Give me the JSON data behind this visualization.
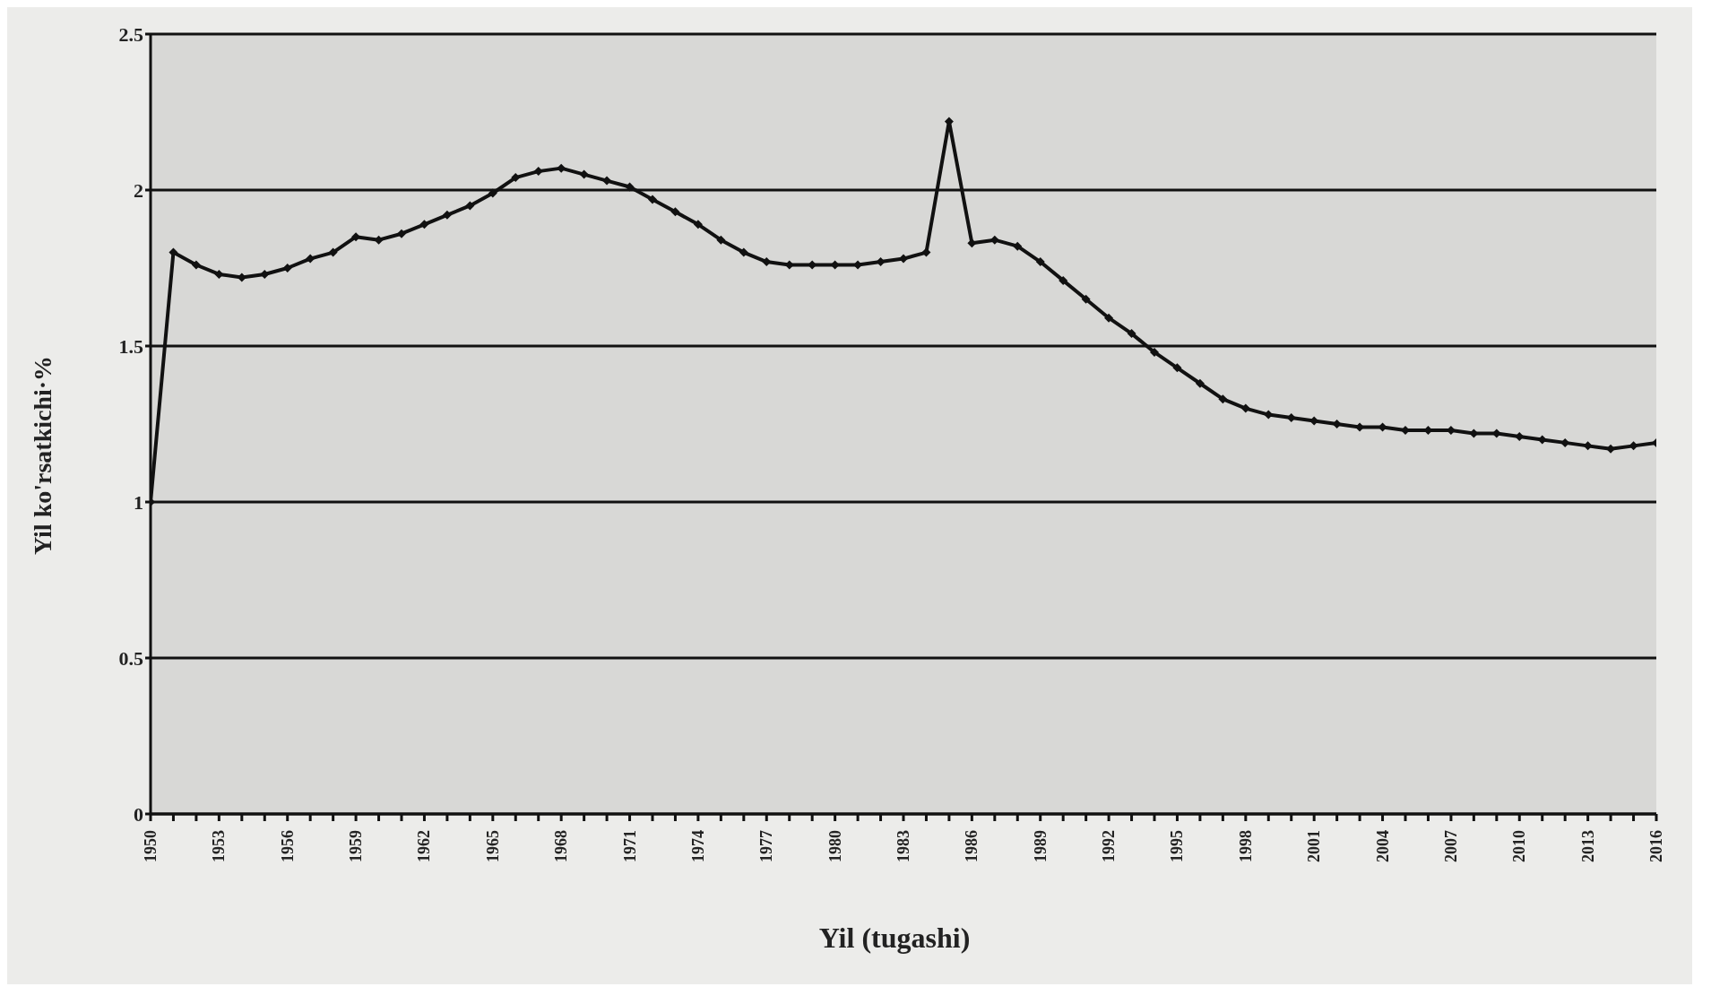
{
  "chart_data": {
    "type": "line",
    "xlabel": "Yil (tugashi)",
    "ylabel": "Yil ko'rsatkichi·%",
    "x": [
      1950,
      1951,
      1952,
      1953,
      1954,
      1955,
      1956,
      1957,
      1958,
      1959,
      1960,
      1961,
      1962,
      1963,
      1964,
      1965,
      1966,
      1967,
      1968,
      1969,
      1970,
      1971,
      1972,
      1973,
      1974,
      1975,
      1976,
      1977,
      1978,
      1979,
      1980,
      1981,
      1982,
      1983,
      1984,
      1985,
      1986,
      1987,
      1988,
      1989,
      1990,
      1991,
      1992,
      1993,
      1994,
      1995,
      1996,
      1997,
      1998,
      1999,
      2000,
      2001,
      2002,
      2003,
      2004,
      2005,
      2006,
      2007,
      2008,
      2009,
      2010,
      2011,
      2012,
      2013,
      2014,
      2015,
      2016
    ],
    "series": [
      {
        "color": "#111111",
        "values": [
          1.0,
          1.8,
          1.76,
          1.73,
          1.72,
          1.73,
          1.75,
          1.78,
          1.8,
          1.85,
          1.84,
          1.86,
          1.89,
          1.92,
          1.95,
          1.99,
          2.04,
          2.06,
          2.07,
          2.05,
          2.03,
          2.01,
          1.97,
          1.93,
          1.89,
          1.84,
          1.8,
          1.77,
          1.76,
          1.76,
          1.76,
          1.76,
          1.77,
          1.78,
          1.8,
          2.22,
          1.83,
          1.84,
          1.82,
          1.77,
          1.71,
          1.65,
          1.59,
          1.54,
          1.48,
          1.43,
          1.38,
          1.33,
          1.3,
          1.28,
          1.27,
          1.26,
          1.25,
          1.24,
          1.24,
          1.23,
          1.23,
          1.23,
          1.22,
          1.22,
          1.21,
          1.2,
          1.19,
          1.18,
          1.17,
          1.18,
          1.19
        ]
      }
    ],
    "xlim": [
      1950,
      2016
    ],
    "xticks": [
      1950,
      {
        "value": 1951,
        "label": null
      },
      {
        "value": 1952,
        "label": null
      },
      1953,
      {
        "value": 1954,
        "label": null
      },
      {
        "value": 1955,
        "label": null
      },
      1956,
      {
        "value": 1957,
        "label": null
      },
      {
        "value": 1958,
        "label": null
      },
      1959,
      {
        "value": 1960,
        "label": null
      },
      {
        "value": 1961,
        "label": null
      },
      1962,
      {
        "value": 1963,
        "label": null
      },
      {
        "value": 1964,
        "label": null
      },
      1965,
      {
        "value": 1966,
        "label": null
      },
      {
        "value": 1967,
        "label": null
      },
      1968,
      {
        "value": 1969,
        "label": null
      },
      {
        "value": 1970,
        "label": null
      },
      1971,
      {
        "value": 1972,
        "label": null
      },
      {
        "value": 1973,
        "label": null
      },
      1974,
      {
        "value": 1975,
        "label": null
      },
      {
        "value": 1976,
        "label": null
      },
      1977,
      {
        "value": 1978,
        "label": null
      },
      {
        "value": 1979,
        "label": null
      },
      1980,
      {
        "value": 1981,
        "label": null
      },
      {
        "value": 1982,
        "label": null
      },
      1983,
      {
        "value": 1984,
        "label": null
      },
      {
        "value": 1985,
        "label": null
      },
      1986,
      {
        "value": 1987,
        "label": null
      },
      {
        "value": 1988,
        "label": null
      },
      1989,
      {
        "value": 1990,
        "label": null
      },
      {
        "value": 1991,
        "label": null
      },
      1992,
      {
        "value": 1993,
        "label": null
      },
      {
        "value": 1994,
        "label": null
      },
      1995,
      {
        "value": 1996,
        "label": null
      },
      {
        "value": 1997,
        "label": null
      },
      1998,
      {
        "value": 1999,
        "label": null
      },
      {
        "value": 2000,
        "label": null
      },
      2001,
      {
        "value": 2002,
        "label": null
      },
      {
        "value": 2003,
        "label": null
      },
      2004,
      {
        "value": 2005,
        "label": null
      },
      {
        "value": 2006,
        "label": null
      },
      2007,
      {
        "value": 2008,
        "label": null
      },
      {
        "value": 2009,
        "label": null
      },
      2010,
      {
        "value": 2011,
        "label": null
      },
      {
        "value": 2012,
        "label": null
      },
      2013,
      {
        "value": 2014,
        "label": null
      },
      {
        "value": 2015,
        "label": null
      },
      2016
    ],
    "ylim": [
      0,
      2.5
    ],
    "yticks": [
      0,
      0.5,
      1,
      1.5,
      2,
      2.5
    ],
    "grid": "y",
    "marker": "diamond",
    "line_style": "solid"
  }
}
